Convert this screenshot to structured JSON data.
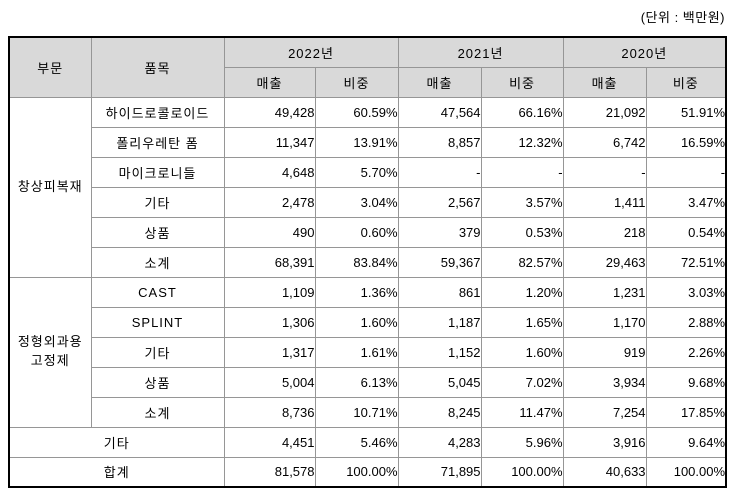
{
  "unit_label": "(단위 : 백만원)",
  "colors": {
    "header_bg": "#d9d9d9",
    "grid_line": "#969696",
    "outer_border": "#000000",
    "text": "#000000",
    "background": "#ffffff"
  },
  "table": {
    "col_headers": {
      "division": "부문",
      "item": "품목",
      "years": [
        "2022년",
        "2021년",
        "2020년"
      ],
      "sub": [
        "매출",
        "비중"
      ]
    },
    "sections": [
      {
        "division": "창상피복재",
        "rows": [
          {
            "item": "하이드로콜로이드",
            "values": [
              "49,428",
              "60.59%",
              "47,564",
              "66.16%",
              "21,092",
              "51.91%"
            ]
          },
          {
            "item": "폴리우레탄 폼",
            "values": [
              "11,347",
              "13.91%",
              "8,857",
              "12.32%",
              "6,742",
              "16.59%"
            ]
          },
          {
            "item": "마이크로니들",
            "values": [
              "4,648",
              "5.70%",
              "-",
              "-",
              "-",
              "-"
            ]
          },
          {
            "item": "기타",
            "values": [
              "2,478",
              "3.04%",
              "2,567",
              "3.57%",
              "1,411",
              "3.47%"
            ]
          },
          {
            "item": "상품",
            "values": [
              "490",
              "0.60%",
              "379",
              "0.53%",
              "218",
              "0.54%"
            ]
          },
          {
            "item": "소계",
            "values": [
              "68,391",
              "83.84%",
              "59,367",
              "82.57%",
              "29,463",
              "72.51%"
            ]
          }
        ]
      },
      {
        "division": "정형외과용 고정제",
        "rows": [
          {
            "item": "CAST",
            "values": [
              "1,109",
              "1.36%",
              "861",
              "1.20%",
              "1,231",
              "3.03%"
            ]
          },
          {
            "item": "SPLINT",
            "values": [
              "1,306",
              "1.60%",
              "1,187",
              "1.65%",
              "1,170",
              "2.88%"
            ]
          },
          {
            "item": "기타",
            "values": [
              "1,317",
              "1.61%",
              "1,152",
              "1.60%",
              "919",
              "2.26%"
            ]
          },
          {
            "item": "상품",
            "values": [
              "5,004",
              "6.13%",
              "5,045",
              "7.02%",
              "3,934",
              "9.68%"
            ]
          },
          {
            "item": "소계",
            "values": [
              "8,736",
              "10.71%",
              "8,245",
              "11.47%",
              "7,254",
              "17.85%"
            ]
          }
        ]
      }
    ],
    "footer_rows": [
      {
        "label": "기타",
        "values": [
          "4,451",
          "5.46%",
          "4,283",
          "5.96%",
          "3,916",
          "9.64%"
        ]
      },
      {
        "label": "합계",
        "values": [
          "81,578",
          "100.00%",
          "71,895",
          "100.00%",
          "40,633",
          "100.00%"
        ]
      }
    ]
  }
}
